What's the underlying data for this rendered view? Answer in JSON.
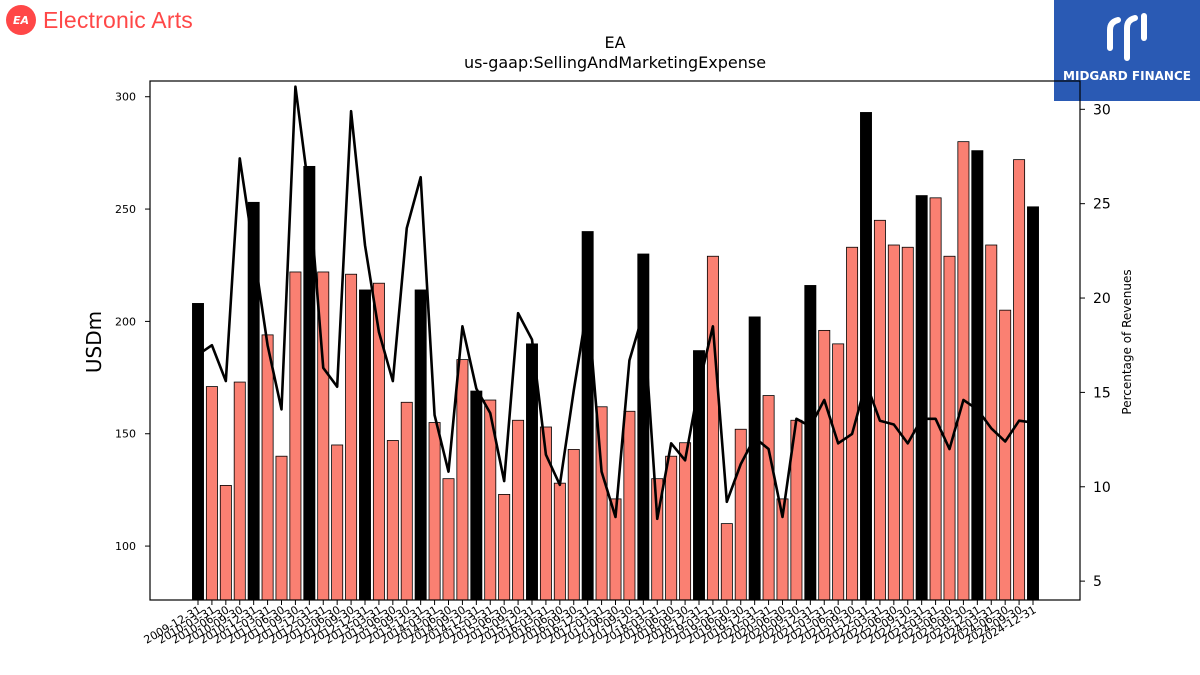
{
  "brand": {
    "name": "Electronic Arts",
    "logo_text": "EA",
    "color": "#ff4747"
  },
  "badge": {
    "name": "MIDGARD FINANCE",
    "color": "#2a5ab4"
  },
  "chart_data": {
    "type": "bar",
    "title": "EA",
    "subtitle": "us-gaap:SellingAndMarketingExpense",
    "ylabel": "USDm",
    "y2label": "Percentage of Revenues",
    "ylim": [
      76,
      307
    ],
    "y2lim": [
      4,
      31.5
    ],
    "yticks": [
      100,
      150,
      200,
      250,
      300
    ],
    "y2ticks": [
      5,
      10,
      15,
      20,
      25,
      30
    ],
    "bar_colors": {
      "annual": "#000000",
      "quarterly": "#fa8072"
    },
    "line_color": "#000000",
    "categories": [
      "2009-12-31",
      "2010-03-31",
      "2010-06-30",
      "2010-09-30",
      "2010-12-31",
      "2011-03-31",
      "2011-06-30",
      "2011-09-30",
      "2011-12-31",
      "2012-03-31",
      "2012-06-30",
      "2012-09-30",
      "2012-12-31",
      "2013-03-31",
      "2013-06-30",
      "2013-09-30",
      "2013-12-31",
      "2014-03-31",
      "2014-06-30",
      "2014-09-30",
      "2014-12-31",
      "2015-03-31",
      "2015-06-30",
      "2015-09-30",
      "2015-12-31",
      "2016-03-31",
      "2016-06-30",
      "2016-09-30",
      "2016-12-31",
      "2017-03-31",
      "2017-06-30",
      "2017-09-30",
      "2017-12-31",
      "2018-03-31",
      "2018-06-30",
      "2018-09-30",
      "2018-12-31",
      "2019-03-31",
      "2019-06-30",
      "2019-09-30",
      "2019-12-31",
      "2020-03-31",
      "2020-06-30",
      "2020-09-30",
      "2020-12-31",
      "2021-03-31",
      "2021-06-30",
      "2021-09-30",
      "2021-12-31",
      "2022-03-31",
      "2022-06-30",
      "2022-09-30",
      "2022-12-31",
      "2023-03-31",
      "2023-06-30",
      "2023-09-30",
      "2023-12-31",
      "2024-03-31",
      "2024-06-30",
      "2024-09-30",
      "2024-12-31"
    ],
    "annual": [
      true,
      false,
      false,
      false,
      true,
      false,
      false,
      false,
      true,
      false,
      false,
      false,
      true,
      false,
      false,
      false,
      true,
      false,
      false,
      false,
      true,
      false,
      false,
      false,
      true,
      false,
      false,
      false,
      true,
      false,
      false,
      false,
      true,
      false,
      false,
      false,
      true,
      false,
      false,
      false,
      true,
      false,
      false,
      false,
      true,
      false,
      false,
      false,
      true,
      false,
      false,
      false,
      true,
      false,
      false,
      false,
      true,
      false,
      false,
      false,
      true
    ],
    "values": [
      208,
      171,
      127,
      173,
      253,
      194,
      140,
      222,
      269,
      222,
      145,
      221,
      214,
      217,
      147,
      164,
      214,
      155,
      130,
      183,
      169,
      165,
      123,
      156,
      190,
      153,
      128,
      143,
      240,
      162,
      121,
      160,
      230,
      130,
      140,
      146,
      187,
      229,
      110,
      152,
      202,
      167,
      121,
      156,
      216,
      196,
      190,
      233,
      293,
      245,
      234,
      233,
      256,
      255,
      229,
      280,
      276,
      234,
      205,
      272,
      251
    ],
    "pct_revenue": [
      17.0,
      17.5,
      15.6,
      27.4,
      22.5,
      17.5,
      14.1,
      31.2,
      25.5,
      16.3,
      15.3,
      29.9,
      22.8,
      18.2,
      15.6,
      23.7,
      26.4,
      13.8,
      10.8,
      18.5,
      15.2,
      13.9,
      10.3,
      19.2,
      17.8,
      11.7,
      10.1,
      15.1,
      19.7,
      10.8,
      8.4,
      16.7,
      19.2,
      8.3,
      12.3,
      11.4,
      15.4,
      18.5,
      9.2,
      11.2,
      12.6,
      12.0,
      8.4,
      13.6,
      13.2,
      14.6,
      12.3,
      12.8,
      15.5,
      13.5,
      13.3,
      12.3,
      13.6,
      13.6,
      12.0,
      14.6,
      14.1,
      13.1,
      12.4,
      13.5,
      13.4
    ]
  }
}
